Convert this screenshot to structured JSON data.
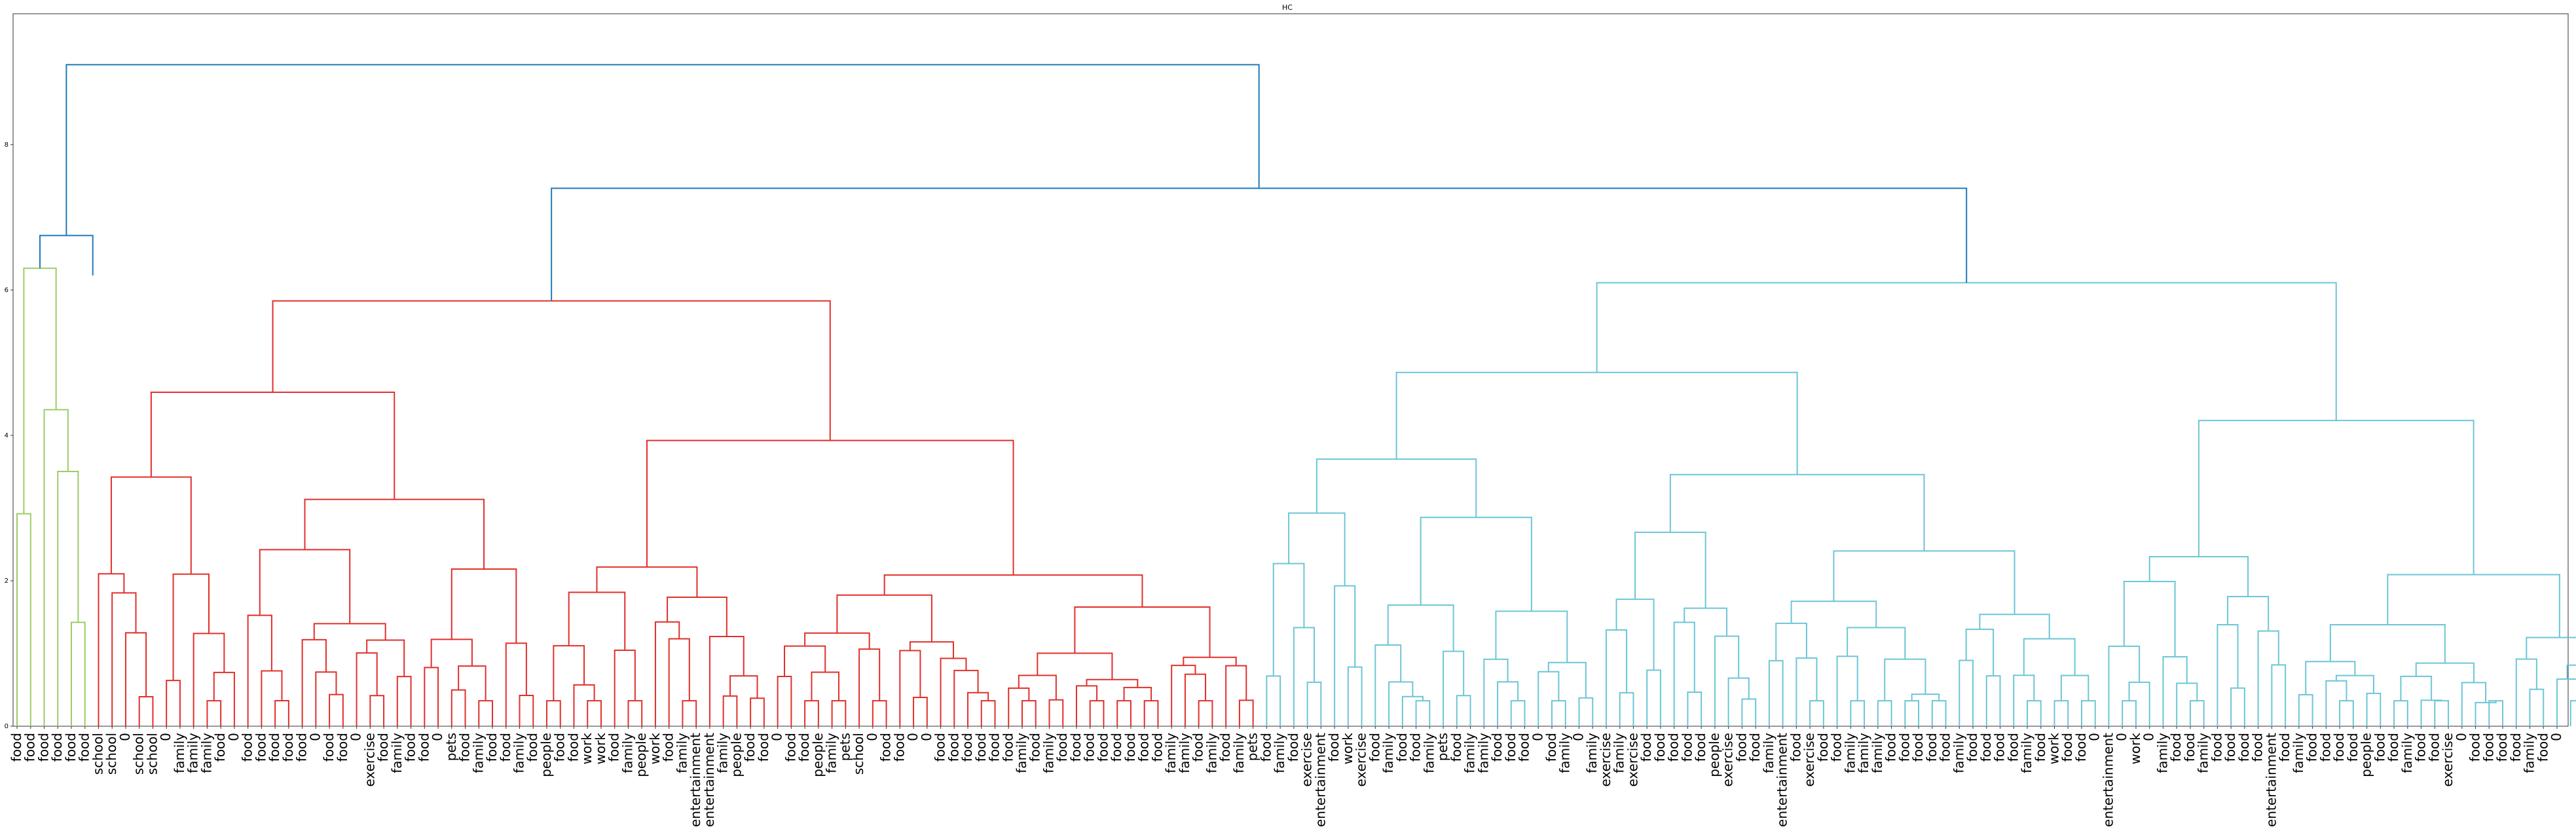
{
  "chart_data": {
    "type": "dendrogram",
    "title": "HC",
    "xlabel": "",
    "ylabel": "",
    "ylim": [
      0,
      9.8
    ],
    "yticks": [
      0,
      2,
      4,
      6,
      8
    ],
    "grid": false,
    "leaf_labels": [
      "food",
      "food",
      "food",
      "food",
      "food",
      "food",
      "school",
      "school",
      "0",
      "school",
      "school",
      "0",
      "family",
      "family",
      "family",
      "food",
      "0",
      "food",
      "food",
      "food",
      "food",
      "food",
      "0",
      "food",
      "food",
      "0",
      "exercise",
      "food",
      "family",
      "food",
      "food",
      "0",
      "pets",
      "food",
      "family",
      "food",
      "food",
      "family",
      "food",
      "people",
      "food",
      "food",
      "work",
      "work",
      "food",
      "family",
      "people",
      "work",
      "food",
      "family",
      "entertainment",
      "entertainment",
      "family",
      "people",
      "food",
      "food",
      "0",
      "food",
      "food",
      "people",
      "family",
      "pets",
      "school",
      "0",
      "food",
      "food",
      "0",
      "0",
      "food",
      "food",
      "food",
      "food",
      "food",
      "food",
      "family",
      "food",
      "family",
      "food",
      "food",
      "food",
      "food",
      "food",
      "food",
      "food",
      "food",
      "family",
      "family",
      "food",
      "family",
      "food",
      "family",
      "pets",
      "food",
      "family",
      "food",
      "exercise",
      "entertainment",
      "food",
      "work",
      "exercise",
      "food",
      "family",
      "food",
      "food",
      "family",
      "pets",
      "food",
      "family",
      "family",
      "food",
      "food",
      "food",
      "0",
      "food",
      "family",
      "0",
      "family",
      "exercise",
      "family",
      "exercise",
      "food",
      "food",
      "food",
      "food",
      "food",
      "people",
      "exercise",
      "food",
      "food",
      "family",
      "entertainment",
      "food",
      "exercise",
      "food",
      "food",
      "family",
      "family",
      "family",
      "food",
      "food",
      "food",
      "food",
      "food",
      "family",
      "food",
      "food",
      "food",
      "food",
      "family",
      "food",
      "work",
      "food",
      "food",
      "0",
      "entertainment",
      "0",
      "work",
      "0",
      "family",
      "food",
      "food",
      "family",
      "food",
      "food",
      "food",
      "food",
      "entertainment",
      "food",
      "family",
      "food",
      "food",
      "food",
      "food",
      "people",
      "food",
      "food",
      "family",
      "food",
      "food",
      "exercise",
      "0",
      "food",
      "food",
      "food",
      "food",
      "family",
      "food",
      "0"
    ],
    "palette": {
      "green": "#9ccc66",
      "blue": "#1f7ab8",
      "red": "#e0302a",
      "cyan": "#6cc6d6"
    },
    "clusters": [
      {
        "color": "green",
        "range": [
          0,
          5
        ]
      },
      {
        "color": "red",
        "range": [
          6,
          91
        ]
      },
      {
        "color": "cyan",
        "range": [
          92,
          193
        ]
      }
    ],
    "merge_heights": [
      {
        "between": "root",
        "value": 9.1
      },
      {
        "between": "green+blue-left | rest",
        "value": 6.75
      },
      {
        "between": "green cluster",
        "value": 6.3
      },
      {
        "between": "red | cyan",
        "value": 7.4
      },
      {
        "between": "red cluster",
        "value": 5.85
      },
      {
        "between": "cyan cluster",
        "value": 6.1
      }
    ]
  }
}
